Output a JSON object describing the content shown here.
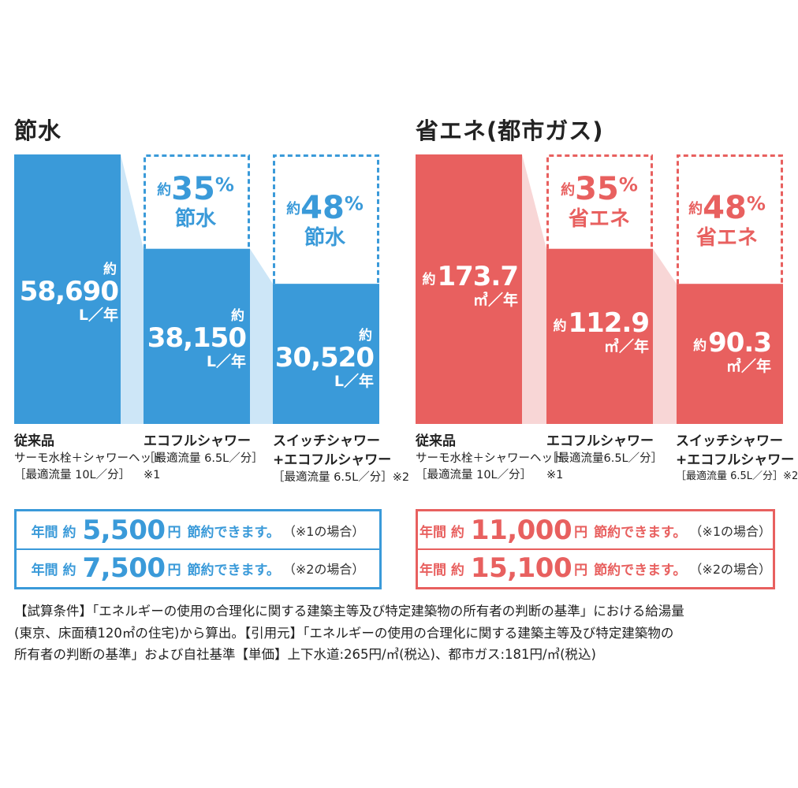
{
  "colors": {
    "water": "#3a9ad9",
    "water_light": "#cde6f7",
    "water_text": "#3a9ad9",
    "energy": "#e8605f",
    "energy_light": "#f8d6d6",
    "energy_text": "#e8605f"
  },
  "chart_data": [
    {
      "type": "bar",
      "title": "節水",
      "unit": "L／年",
      "categories": [
        "従来品",
        "エコフルシャワー",
        "スイッチシャワー+エコフルシャワー"
      ],
      "values": [
        58690,
        38150,
        30520
      ],
      "value_labels": [
        {
          "prefix": "約",
          "value": "58,690",
          "unit": "L／年"
        },
        {
          "prefix": "約",
          "value": "38,150",
          "unit": "L／年"
        },
        {
          "prefix": "約",
          "value": "30,520",
          "unit": "L／年"
        }
      ],
      "reductions": [
        {
          "prefix": "約",
          "value": "35",
          "symbol": "%",
          "word": "節水"
        },
        {
          "prefix": "約",
          "value": "48",
          "symbol": "%",
          "word": "節水"
        }
      ],
      "captions": [
        [
          "従来品",
          "サーモ水栓＋シャワーヘッド",
          "［最適流量 10L／分］"
        ],
        [
          "エコフルシャワー",
          "［最適流量 6.5L／分］",
          "※1"
        ],
        [
          "スイッチシャワー",
          "+エコフルシャワー",
          "［最適流量 6.5L／分］※2"
        ]
      ],
      "savings": [
        {
          "label": "年間 約",
          "amount": "5,500",
          "yen": "円",
          "suffix": "節約できます。",
          "note": "（※1の場合）"
        },
        {
          "label": "年間 約",
          "amount": "7,500",
          "yen": "円",
          "suffix": "節約できます。",
          "note": "（※2の場合）"
        }
      ]
    },
    {
      "type": "bar",
      "title": "省エネ(都市ガス)",
      "unit": "㎥／年",
      "categories": [
        "従来品",
        "エコフルシャワー",
        "スイッチシャワー+エコフルシャワー"
      ],
      "values": [
        173.7,
        112.9,
        90.3
      ],
      "value_labels": [
        {
          "prefix": "約",
          "value": "173.7",
          "unit": "㎥／年"
        },
        {
          "prefix": "約",
          "value": "112.9",
          "unit": "㎥／年"
        },
        {
          "prefix": "約",
          "value": "90.3",
          "unit": "㎥／年"
        }
      ],
      "reductions": [
        {
          "prefix": "約",
          "value": "35",
          "symbol": "%",
          "word": "省エネ"
        },
        {
          "prefix": "約",
          "value": "48",
          "symbol": "%",
          "word": "省エネ"
        }
      ],
      "captions": [
        [
          "従来品",
          "サーモ水栓＋シャワーヘッド",
          "［最適流量 10L／分］"
        ],
        [
          "エコフルシャワー",
          "［最適流量6.5L／分］",
          "※1"
        ],
        [
          "スイッチシャワー",
          "+エコフルシャワー",
          "［最適流量 6.5L／分］※2"
        ]
      ],
      "savings": [
        {
          "label": "年間 約",
          "amount": "11,000",
          "yen": "円",
          "suffix": "節約できます。",
          "note": "（※1の場合）"
        },
        {
          "label": "年間 約",
          "amount": "15,100",
          "yen": "円",
          "suffix": "節約できます。",
          "note": "（※2の場合）"
        }
      ]
    }
  ],
  "footnote": {
    "line1": "【試算条件】「エネルギーの使用の合理化に関する建築主等及び特定建築物の所有者の判断の基準」における給湯量",
    "line2": "(東京、床面積120㎡の住宅)から算出。【引用元】「エネルギーの使用の合理化に関する建築主等及び特定建築物の",
    "line3": "所有者の判断の基準」および自社基準【単価】上下水道:265円/㎥(税込)、都市ガス:181円/㎥(税込)"
  }
}
